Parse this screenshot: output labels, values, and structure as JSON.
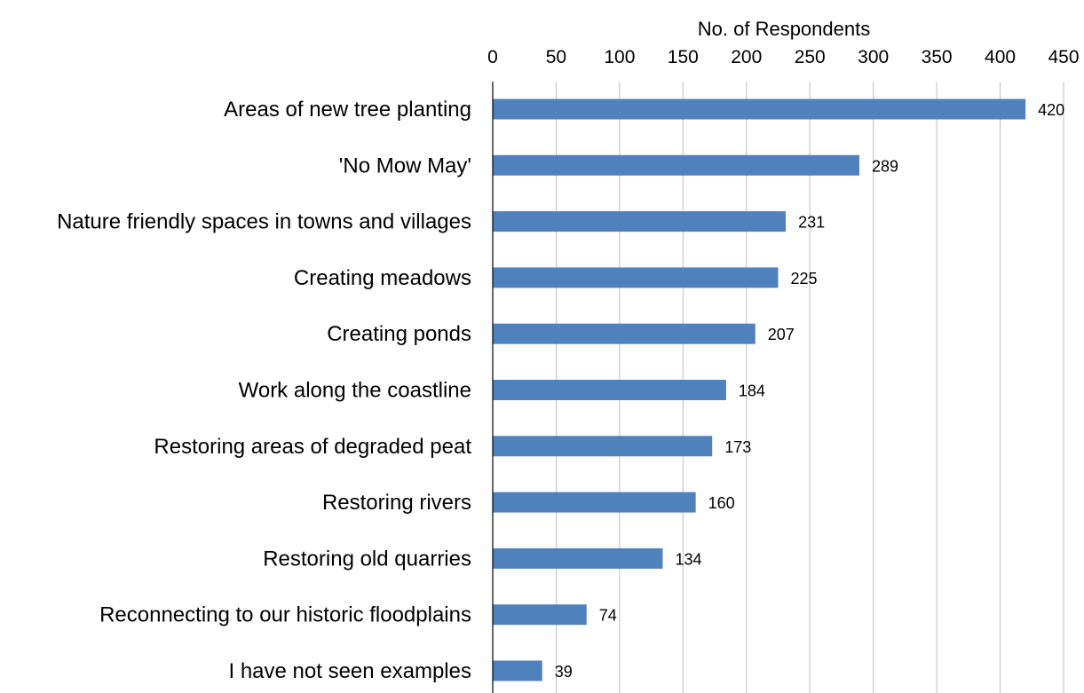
{
  "chart_data": {
    "type": "bar",
    "orientation": "horizontal",
    "title": "",
    "xlabel": "No. of Respondents",
    "ylabel": "",
    "xlim": [
      0,
      450
    ],
    "x_ticks": [
      0,
      50,
      100,
      150,
      200,
      250,
      300,
      350,
      400,
      450
    ],
    "x_axis_position": "top",
    "grid": true,
    "legend": false,
    "bar_color": "#4f81bd",
    "categories": [
      "Areas of new tree planting",
      "'No Mow May'",
      "Nature friendly spaces in towns and villages",
      "Creating meadows",
      "Creating ponds",
      "Work along the coastline",
      "Restoring areas of degraded peat",
      "Restoring rivers",
      "Restoring old quarries",
      "Reconnecting to our historic floodplains",
      "I have not seen examples"
    ],
    "values": [
      420,
      289,
      231,
      225,
      207,
      184,
      173,
      160,
      134,
      74,
      39
    ]
  }
}
